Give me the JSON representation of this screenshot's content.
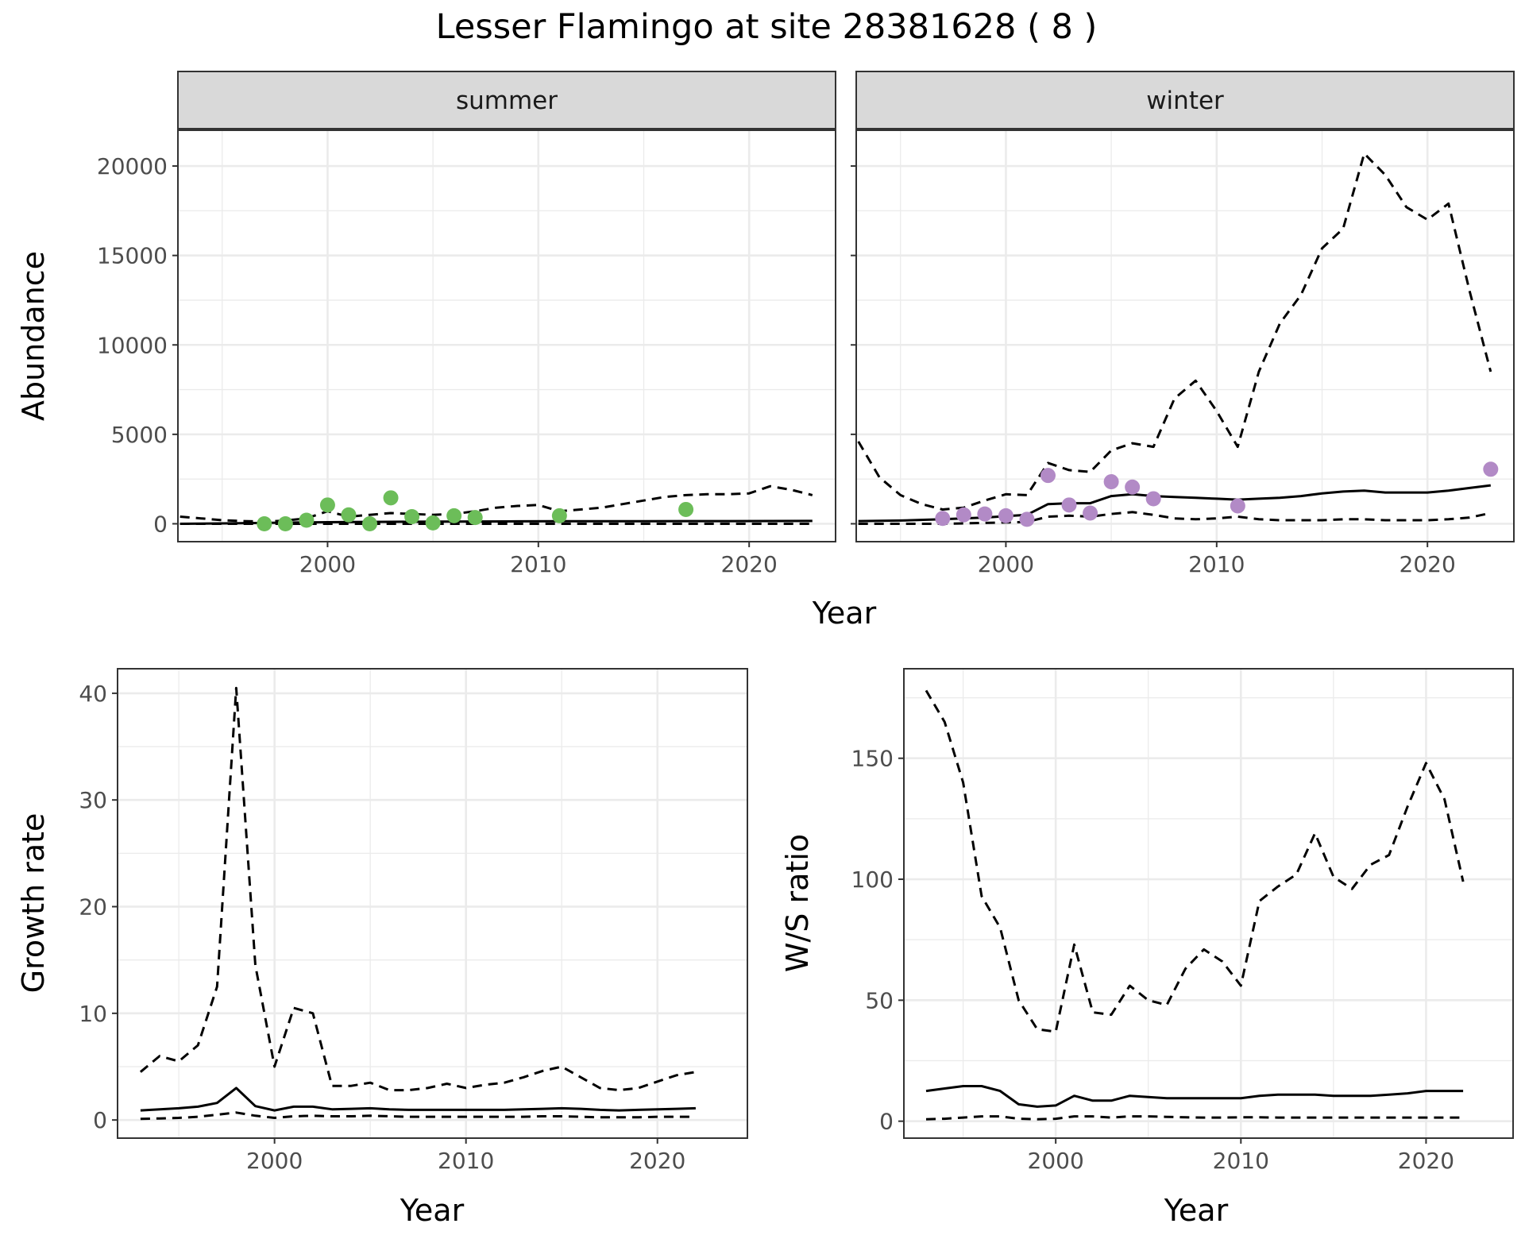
{
  "figure": {
    "title": "Lesser Flamingo at site 28381628 ( 8 )",
    "colors": {
      "summer_points": "#6cbd59",
      "winter_points": "#b28ac6",
      "lines": "#000000"
    }
  },
  "chart_data": [
    {
      "type": "line",
      "panel": "abundance-summer",
      "facet_label": "summer",
      "ylabel": "Abundance",
      "xlabel": "Year",
      "xlim": [
        1992.9,
        2024.1
      ],
      "ylim": [
        -1000,
        22000
      ],
      "x_ticks": [
        2000,
        2010,
        2020
      ],
      "y_ticks": [
        0,
        5000,
        10000,
        15000,
        20000
      ],
      "show_y_tick_labels": true,
      "grid": true,
      "series": [
        {
          "style": "solid",
          "x": [
            1993,
            1995,
            1997,
            1999,
            2001,
            2003,
            2005,
            2007,
            2009,
            2011,
            2013,
            2015,
            2017,
            2019,
            2021,
            2023
          ],
          "y": [
            0,
            20,
            50,
            80,
            100,
            110,
            120,
            130,
            135,
            140,
            140,
            145,
            150,
            150,
            155,
            160
          ]
        },
        {
          "style": "dashed",
          "x": [
            1993,
            1994,
            1995,
            1996,
            1997,
            1998,
            1999,
            2000,
            2001,
            2002,
            2003,
            2004,
            2005,
            2006,
            2007,
            2008,
            2009,
            2010,
            2011,
            2012,
            2013,
            2014,
            2015,
            2016,
            2017,
            2018,
            2019,
            2020,
            2021,
            2022,
            2023
          ],
          "y": [
            400,
            300,
            200,
            150,
            120,
            180,
            300,
            700,
            400,
            500,
            600,
            550,
            500,
            550,
            700,
            900,
            1000,
            1050,
            700,
            800,
            900,
            1100,
            1300,
            1500,
            1600,
            1650,
            1650,
            1700,
            2100,
            1900,
            1600
          ]
        },
        {
          "style": "dashed",
          "x": [
            1993,
            1995,
            1997,
            1999,
            2001,
            2003,
            2005,
            2007,
            2009,
            2011,
            2013,
            2015,
            2017,
            2019,
            2021,
            2023
          ],
          "y": [
            0,
            0,
            0,
            0,
            0,
            0,
            0,
            0,
            0,
            0,
            0,
            0,
            0,
            0,
            0,
            0
          ]
        },
        {
          "style": "points",
          "x": [
            1997,
            1998,
            1999,
            2000,
            2001,
            2002,
            2003,
            2004,
            2005,
            2006,
            2007,
            2011,
            2017
          ],
          "y": [
            0,
            0,
            200,
            1050,
            500,
            0,
            1450,
            400,
            50,
            450,
            350,
            450,
            800
          ]
        }
      ]
    },
    {
      "type": "line",
      "panel": "abundance-winter",
      "facet_label": "winter",
      "xlabel": "Year",
      "xlim": [
        1992.9,
        2024.1
      ],
      "ylim": [
        -1000,
        22000
      ],
      "x_ticks": [
        2000,
        2010,
        2020
      ],
      "y_ticks": [
        0,
        5000,
        10000,
        15000,
        20000
      ],
      "show_y_tick_labels": false,
      "grid": true,
      "series": [
        {
          "style": "solid",
          "x": [
            1993,
            1995,
            1997,
            1999,
            2001,
            2002,
            2003,
            2004,
            2005,
            2006,
            2007,
            2008,
            2009,
            2010,
            2011,
            2012,
            2013,
            2014,
            2015,
            2016,
            2017,
            2018,
            2019,
            2020,
            2021,
            2022,
            2023
          ],
          "y": [
            150,
            180,
            250,
            350,
            500,
            1100,
            1150,
            1150,
            1550,
            1650,
            1550,
            1500,
            1450,
            1400,
            1350,
            1400,
            1450,
            1550,
            1700,
            1800,
            1850,
            1750,
            1750,
            1750,
            1850,
            2000,
            2150
          ]
        },
        {
          "style": "dashed",
          "x": [
            1993,
            1994,
            1995,
            1996,
            1997,
            1998,
            1999,
            2000,
            2001,
            2002,
            2003,
            2004,
            2005,
            2006,
            2007,
            2008,
            2009,
            2010,
            2011,
            2012,
            2013,
            2014,
            2015,
            2016,
            2017,
            2018,
            2019,
            2020,
            2021,
            2022,
            2023
          ],
          "y": [
            4600,
            2600,
            1600,
            1100,
            800,
            900,
            1300,
            1650,
            1600,
            3400,
            3000,
            2900,
            4100,
            4500,
            4300,
            7000,
            8000,
            6300,
            4300,
            8500,
            11200,
            12800,
            15400,
            16500,
            20700,
            19500,
            17700,
            17000,
            17900,
            13000,
            8500
          ]
        },
        {
          "style": "dashed",
          "x": [
            1993,
            1995,
            1997,
            1999,
            2001,
            2002,
            2003,
            2004,
            2005,
            2006,
            2007,
            2008,
            2009,
            2010,
            2011,
            2012,
            2013,
            2014,
            2015,
            2016,
            2017,
            2018,
            2019,
            2020,
            2021,
            2022,
            2023
          ],
          "y": [
            0,
            0,
            0,
            50,
            100,
            400,
            450,
            400,
            550,
            650,
            500,
            300,
            250,
            300,
            400,
            250,
            200,
            200,
            200,
            250,
            250,
            200,
            200,
            200,
            250,
            350,
            600
          ]
        },
        {
          "style": "points",
          "x": [
            1997,
            1998,
            1999,
            2000,
            2001,
            2002,
            2003,
            2004,
            2005,
            2006,
            2007,
            2011,
            2023
          ],
          "y": [
            300,
            500,
            550,
            450,
            250,
            2700,
            1050,
            600,
            2350,
            2050,
            1400,
            1000,
            3050
          ]
        }
      ]
    },
    {
      "type": "line",
      "panel": "growth-rate",
      "ylabel": "Growth rate",
      "xlabel": "Year",
      "xlim": [
        1991.8,
        2024.7
      ],
      "ylim": [
        -1.7,
        42.3
      ],
      "x_ticks": [
        2000,
        2010,
        2020
      ],
      "y_ticks": [
        0,
        10,
        20,
        30,
        40
      ],
      "grid": true,
      "series": [
        {
          "style": "solid",
          "x": [
            1993,
            1994,
            1995,
            1996,
            1997,
            1998,
            1999,
            2000,
            2001,
            2002,
            2003,
            2004,
            2005,
            2006,
            2007,
            2008,
            2009,
            2010,
            2011,
            2012,
            2013,
            2014,
            2015,
            2016,
            2017,
            2018,
            2019,
            2020,
            2021,
            2022
          ],
          "y": [
            0.9,
            1.0,
            1.1,
            1.25,
            1.6,
            3.0,
            1.3,
            0.9,
            1.25,
            1.25,
            1.0,
            1.05,
            1.1,
            1.0,
            0.95,
            0.95,
            0.95,
            0.95,
            0.95,
            0.95,
            1.0,
            1.05,
            1.1,
            1.05,
            0.95,
            0.9,
            0.95,
            1.0,
            1.05,
            1.1
          ]
        },
        {
          "style": "dashed",
          "x": [
            1993,
            1994,
            1995,
            1996,
            1997,
            1998,
            1999,
            2000,
            2001,
            2002,
            2003,
            2004,
            2005,
            2006,
            2007,
            2008,
            2009,
            2010,
            2011,
            2012,
            2013,
            2014,
            2015,
            2016,
            2017,
            2018,
            2019,
            2020,
            2021,
            2022
          ],
          "y": [
            4.5,
            6.0,
            5.5,
            7.0,
            12.5,
            40.5,
            14.5,
            5.0,
            10.5,
            10.0,
            3.2,
            3.2,
            3.5,
            2.8,
            2.8,
            3.0,
            3.4,
            3.0,
            3.3,
            3.5,
            4.0,
            4.6,
            5.0,
            4.0,
            3.0,
            2.8,
            3.0,
            3.6,
            4.2,
            4.5
          ]
        },
        {
          "style": "dashed",
          "x": [
            1993,
            1994,
            1995,
            1996,
            1997,
            1998,
            1999,
            2000,
            2001,
            2002,
            2003,
            2004,
            2005,
            2006,
            2007,
            2008,
            2009,
            2010,
            2011,
            2012,
            2013,
            2014,
            2015,
            2016,
            2017,
            2018,
            2019,
            2020,
            2021,
            2022
          ],
          "y": [
            0.1,
            0.15,
            0.2,
            0.3,
            0.5,
            0.7,
            0.4,
            0.2,
            0.35,
            0.4,
            0.35,
            0.35,
            0.4,
            0.35,
            0.3,
            0.3,
            0.3,
            0.3,
            0.3,
            0.3,
            0.3,
            0.35,
            0.35,
            0.3,
            0.25,
            0.25,
            0.25,
            0.3,
            0.3,
            0.3
          ]
        }
      ]
    },
    {
      "type": "line",
      "panel": "ws-ratio",
      "ylabel": "W/S ratio",
      "xlabel": "Year",
      "xlim": [
        1991.8,
        2024.7
      ],
      "ylim": [
        -7,
        187
      ],
      "x_ticks": [
        2000,
        2010,
        2020
      ],
      "y_ticks": [
        0,
        50,
        100,
        150
      ],
      "grid": true,
      "series": [
        {
          "style": "solid",
          "x": [
            1993,
            1994,
            1995,
            1996,
            1997,
            1998,
            1999,
            2000,
            2001,
            2002,
            2003,
            2004,
            2005,
            2006,
            2007,
            2008,
            2009,
            2010,
            2011,
            2012,
            2013,
            2014,
            2015,
            2016,
            2017,
            2018,
            2019,
            2020,
            2021,
            2022
          ],
          "y": [
            12.5,
            13.5,
            14.5,
            14.5,
            12.5,
            7.0,
            6.0,
            6.5,
            10.5,
            8.5,
            8.5,
            10.5,
            10.0,
            9.5,
            9.5,
            9.5,
            9.5,
            9.5,
            10.5,
            11.0,
            11.0,
            11.0,
            10.5,
            10.5,
            10.5,
            11.0,
            11.5,
            12.5,
            12.5,
            12.5
          ]
        },
        {
          "style": "dashed",
          "x": [
            1993,
            1994,
            1995,
            1996,
            1997,
            1998,
            1999,
            2000,
            2001,
            2002,
            2003,
            2004,
            2005,
            2006,
            2007,
            2008,
            2009,
            2010,
            2011,
            2012,
            2013,
            2014,
            2015,
            2016,
            2017,
            2018,
            2019,
            2020,
            2021,
            2022
          ],
          "y": [
            178,
            165,
            140,
            93,
            80,
            50,
            38,
            37,
            73,
            45,
            44,
            56,
            50,
            48,
            63,
            71,
            66,
            56,
            91,
            97,
            102,
            119,
            101,
            96,
            106,
            110,
            130,
            148,
            133,
            99
          ]
        },
        {
          "style": "dashed",
          "x": [
            1993,
            1994,
            1995,
            1996,
            1997,
            1998,
            1999,
            2000,
            2001,
            2002,
            2003,
            2004,
            2005,
            2006,
            2007,
            2008,
            2009,
            2010,
            2011,
            2012,
            2013,
            2014,
            2015,
            2016,
            2017,
            2018,
            2019,
            2020,
            2021,
            2022
          ],
          "y": [
            0.8,
            1.0,
            1.5,
            2.0,
            2.0,
            1.0,
            0.8,
            1.0,
            2.0,
            2.0,
            1.5,
            2.0,
            2.0,
            1.8,
            1.6,
            1.5,
            1.5,
            1.6,
            1.6,
            1.5,
            1.5,
            1.5,
            1.5,
            1.5,
            1.5,
            1.5,
            1.5,
            1.5,
            1.5,
            1.5
          ]
        }
      ]
    }
  ],
  "shared_labels": {
    "top_xlabel": "Year"
  }
}
